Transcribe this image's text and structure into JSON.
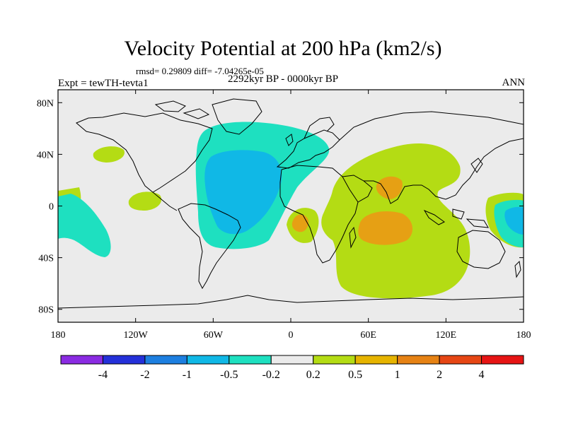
{
  "title": "Velocity Potential at 200 hPa (km2/s)",
  "stats": "rmsd= 0.29809 diff= -7.04265e-05",
  "experiment": "Expt = tewTH-tevta1",
  "period": "2292kyr BP - 0000kyr BP",
  "season": "ANN",
  "lat_labels": [
    {
      "text": "80N",
      "lat": 80
    },
    {
      "text": "40N",
      "lat": 40
    },
    {
      "text": "0",
      "lat": 0
    },
    {
      "text": "40S",
      "lat": -40
    },
    {
      "text": "80S",
      "lat": -80
    }
  ],
  "lon_labels": [
    {
      "text": "180",
      "lon": -180
    },
    {
      "text": "120W",
      "lon": -120
    },
    {
      "text": "60W",
      "lon": -60
    },
    {
      "text": "0",
      "lon": 0
    },
    {
      "text": "60E",
      "lon": 60
    },
    {
      "text": "120E",
      "lon": 120
    },
    {
      "text": "180",
      "lon": 180
    }
  ],
  "colorbar": {
    "colors": [
      "#8a2be2",
      "#2430d9",
      "#1d7fe0",
      "#10b8e6",
      "#1ee0c0",
      "#ebebeb",
      "#b4dc14",
      "#e6b400",
      "#e68214",
      "#e64614",
      "#e61414"
    ],
    "labels": [
      "-4",
      "-2",
      "-1",
      "-0.5",
      "-0.2",
      "0.2",
      "0.5",
      "1",
      "2",
      "4"
    ]
  },
  "colors": {
    "background": "#ebebeb",
    "green": "#b4dc14",
    "orange": "#e6a014",
    "teal": "#1ee0c0",
    "cyan": "#10b8e6"
  }
}
